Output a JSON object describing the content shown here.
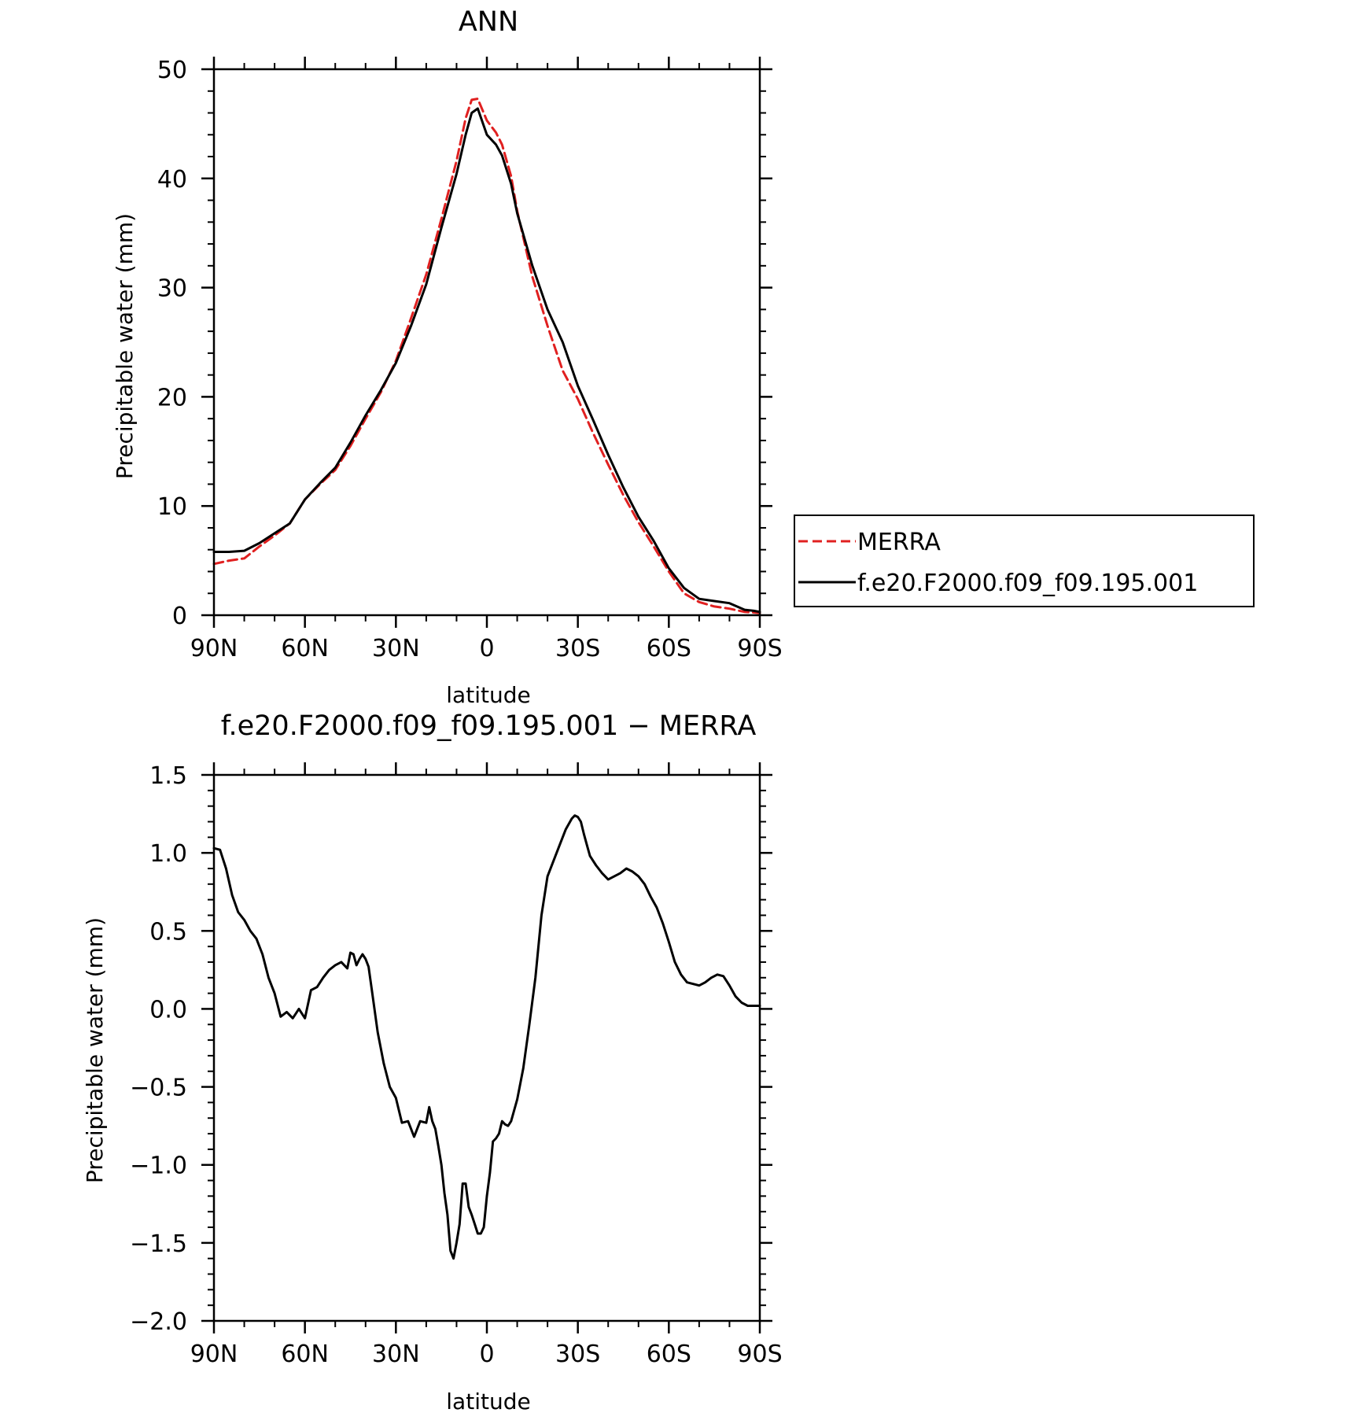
{
  "chart_data": [
    {
      "type": "line",
      "title": "ANN",
      "xlabel": "latitude",
      "ylabel": "Precipitable water (mm)",
      "xlim": [
        90,
        -90
      ],
      "ylim": [
        0,
        50
      ],
      "xticks": [
        90,
        60,
        30,
        0,
        -30,
        -60,
        -90
      ],
      "xticklabels": [
        "90N",
        "60N",
        "30N",
        "0",
        "30S",
        "60S",
        "90S"
      ],
      "yticks": [
        0,
        10,
        20,
        30,
        40,
        50
      ],
      "yticklabels": [
        "0",
        "10",
        "20",
        "30",
        "40",
        "50"
      ],
      "grid": false,
      "legend_position": "right",
      "series": [
        {
          "name": "MERRA",
          "color": "#e02020",
          "dash": "dashed",
          "x": [
            90,
            85,
            80,
            75,
            70,
            65,
            60,
            55,
            50,
            45,
            40,
            35,
            30,
            25,
            20,
            15,
            10,
            7,
            5,
            3,
            0,
            -3,
            -5,
            -8,
            -10,
            -15,
            -20,
            -25,
            -30,
            -35,
            -40,
            -45,
            -50,
            -55,
            -60,
            -65,
            -70,
            -75,
            -80,
            -85,
            -88,
            -90
          ],
          "y": [
            4.7,
            5.0,
            5.2,
            6.3,
            7.3,
            8.4,
            10.6,
            12.0,
            13.3,
            15.5,
            18.0,
            20.4,
            23.3,
            27.2,
            31.2,
            36.3,
            41.6,
            45.5,
            47.2,
            47.3,
            45.3,
            44.2,
            43.1,
            40.2,
            37.0,
            31.0,
            26.5,
            22.4,
            19.8,
            16.7,
            13.8,
            11.0,
            8.5,
            6.3,
            4.0,
            2.0,
            1.2,
            0.8,
            0.6,
            0.3,
            0.25,
            0.2
          ]
        },
        {
          "name": "f.e20.F2000.f09_f09.195.001",
          "color": "#000000",
          "dash": "solid",
          "x": [
            90,
            85,
            80,
            75,
            70,
            65,
            60,
            55,
            50,
            45,
            40,
            35,
            30,
            25,
            20,
            15,
            10,
            7,
            5,
            3,
            0,
            -3,
            -5,
            -8,
            -10,
            -15,
            -20,
            -25,
            -30,
            -35,
            -40,
            -45,
            -50,
            -55,
            -60,
            -65,
            -70,
            -75,
            -80,
            -85,
            -88,
            -90
          ],
          "y": [
            5.8,
            5.8,
            5.9,
            6.6,
            7.5,
            8.4,
            10.6,
            12.1,
            13.5,
            15.8,
            18.3,
            20.6,
            23.1,
            26.5,
            30.3,
            35.5,
            40.4,
            44.0,
            46.0,
            46.4,
            44.0,
            43.1,
            42.1,
            39.5,
            36.8,
            32.0,
            28.0,
            25.0,
            21.0,
            17.9,
            14.7,
            11.7,
            9.0,
            6.8,
            4.3,
            2.5,
            1.5,
            1.3,
            1.1,
            0.5,
            0.4,
            0.3
          ]
        }
      ]
    },
    {
      "type": "line",
      "title": "f.e20.F2000.f09_f09.195.001 − MERRA",
      "xlabel": "latitude",
      "ylabel": "Precipitable water (mm)",
      "xlim": [
        90,
        -90
      ],
      "ylim": [
        -2.0,
        1.5
      ],
      "xticks": [
        90,
        60,
        30,
        0,
        -30,
        -60,
        -90
      ],
      "xticklabels": [
        "90N",
        "60N",
        "30N",
        "0",
        "30S",
        "60S",
        "90S"
      ],
      "yticks": [
        1.5,
        1.0,
        0.5,
        0.0,
        -0.5,
        -1.0,
        -1.5,
        -2.0
      ],
      "yticklabels": [
        "1.5",
        "1.0",
        "0.5",
        "0.0",
        "−0.5",
        "−1.0",
        "−1.5",
        "−2.0"
      ],
      "grid": false,
      "series": [
        {
          "color": "#000000",
          "dash": "solid",
          "x": [
            90,
            88,
            86,
            84,
            82,
            80,
            78,
            76,
            74,
            72,
            70,
            68,
            66,
            64,
            63,
            62,
            60,
            58,
            56,
            54,
            52,
            50,
            48,
            46,
            45,
            44,
            43,
            42,
            41,
            40,
            39,
            38,
            36,
            34,
            32,
            30,
            28,
            26,
            24,
            22,
            20,
            19,
            18,
            17,
            16,
            15,
            14,
            13,
            12,
            11,
            10,
            9,
            8,
            7,
            6,
            5,
            4,
            3,
            2,
            1,
            0,
            -1,
            -2,
            -3,
            -4,
            -5,
            -6,
            -7,
            -8,
            -10,
            -12,
            -14,
            -16,
            -18,
            -20,
            -22,
            -24,
            -26,
            -28,
            -29,
            -30,
            -31,
            -32,
            -33,
            -34,
            -36,
            -38,
            -40,
            -42,
            -44,
            -46,
            -48,
            -50,
            -52,
            -54,
            -56,
            -58,
            -60,
            -62,
            -64,
            -66,
            -68,
            -70,
            -72,
            -74,
            -76,
            -78,
            -80,
            -82,
            -84,
            -86,
            -88,
            -90
          ],
          "y": [
            1.03,
            1.02,
            0.9,
            0.73,
            0.62,
            0.57,
            0.5,
            0.45,
            0.35,
            0.2,
            0.1,
            -0.05,
            -0.02,
            -0.06,
            -0.03,
            0.0,
            -0.06,
            0.12,
            0.14,
            0.2,
            0.25,
            0.28,
            0.3,
            0.26,
            0.36,
            0.35,
            0.28,
            0.32,
            0.35,
            0.32,
            0.27,
            0.13,
            -0.15,
            -0.35,
            -0.5,
            -0.57,
            -0.73,
            -0.72,
            -0.82,
            -0.72,
            -0.73,
            -0.63,
            -0.72,
            -0.77,
            -0.88,
            -1.0,
            -1.18,
            -1.32,
            -1.55,
            -1.6,
            -1.5,
            -1.38,
            -1.12,
            -1.12,
            -1.27,
            -1.32,
            -1.38,
            -1.44,
            -1.44,
            -1.4,
            -1.2,
            -1.05,
            -0.85,
            -0.83,
            -0.8,
            -0.72,
            -0.74,
            -0.75,
            -0.72,
            -0.58,
            -0.38,
            -0.1,
            0.2,
            0.6,
            0.85,
            0.95,
            1.05,
            1.15,
            1.22,
            1.24,
            1.23,
            1.2,
            1.12,
            1.05,
            0.98,
            0.92,
            0.87,
            0.83,
            0.85,
            0.87,
            0.9,
            0.88,
            0.85,
            0.8,
            0.72,
            0.65,
            0.55,
            0.43,
            0.3,
            0.22,
            0.17,
            0.16,
            0.15,
            0.17,
            0.2,
            0.22,
            0.21,
            0.15,
            0.08,
            0.04,
            0.02,
            0.02,
            0.02
          ]
        }
      ]
    }
  ]
}
